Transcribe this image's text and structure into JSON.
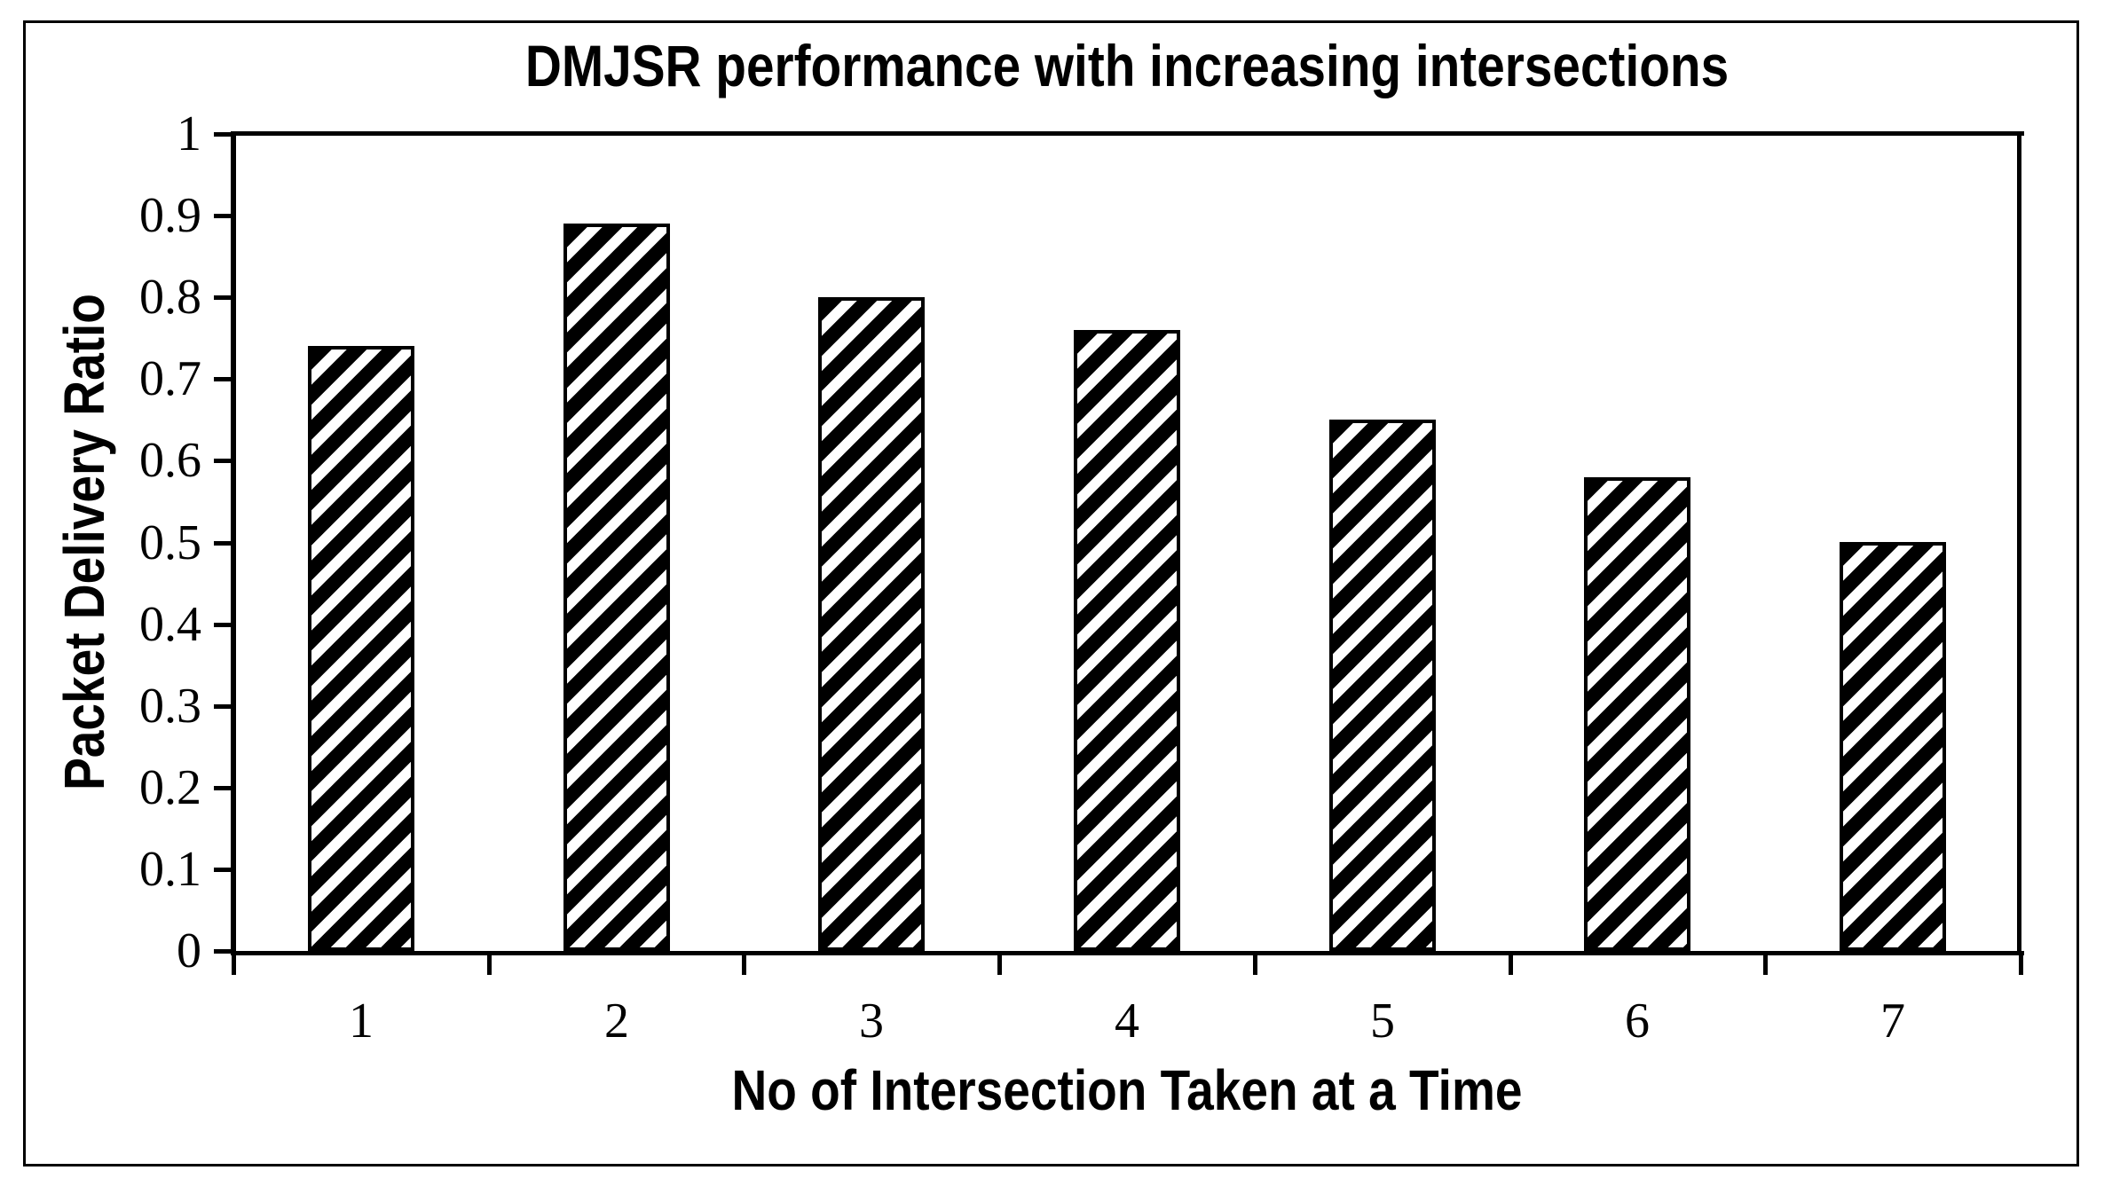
{
  "chart_data": {
    "type": "bar",
    "title": "DMJSR performance with increasing intersections",
    "xlabel": "No of Intersection Taken at a Time",
    "ylabel": "Packet Delivery Ratio",
    "categories": [
      "1",
      "2",
      "3",
      "4",
      "5",
      "6",
      "7"
    ],
    "values": [
      0.74,
      0.89,
      0.8,
      0.76,
      0.65,
      0.58,
      0.5
    ],
    "ylim": [
      0,
      1
    ],
    "ytick_step": 0.1,
    "ytick_labels_top_to_bottom": [
      "1",
      "0.9",
      "0.8",
      "0.7",
      "0.6",
      "0.5",
      "0.4",
      "0.3",
      "0.2",
      "0.1",
      "0"
    ],
    "grid": false,
    "legend": "none",
    "bar_fill_color": "#000000",
    "bar_hatch": "white diagonal stripes rising to the right",
    "hatch_stripe_color": "#ffffff",
    "background_color": "#ffffff",
    "border_color": "#000000"
  }
}
